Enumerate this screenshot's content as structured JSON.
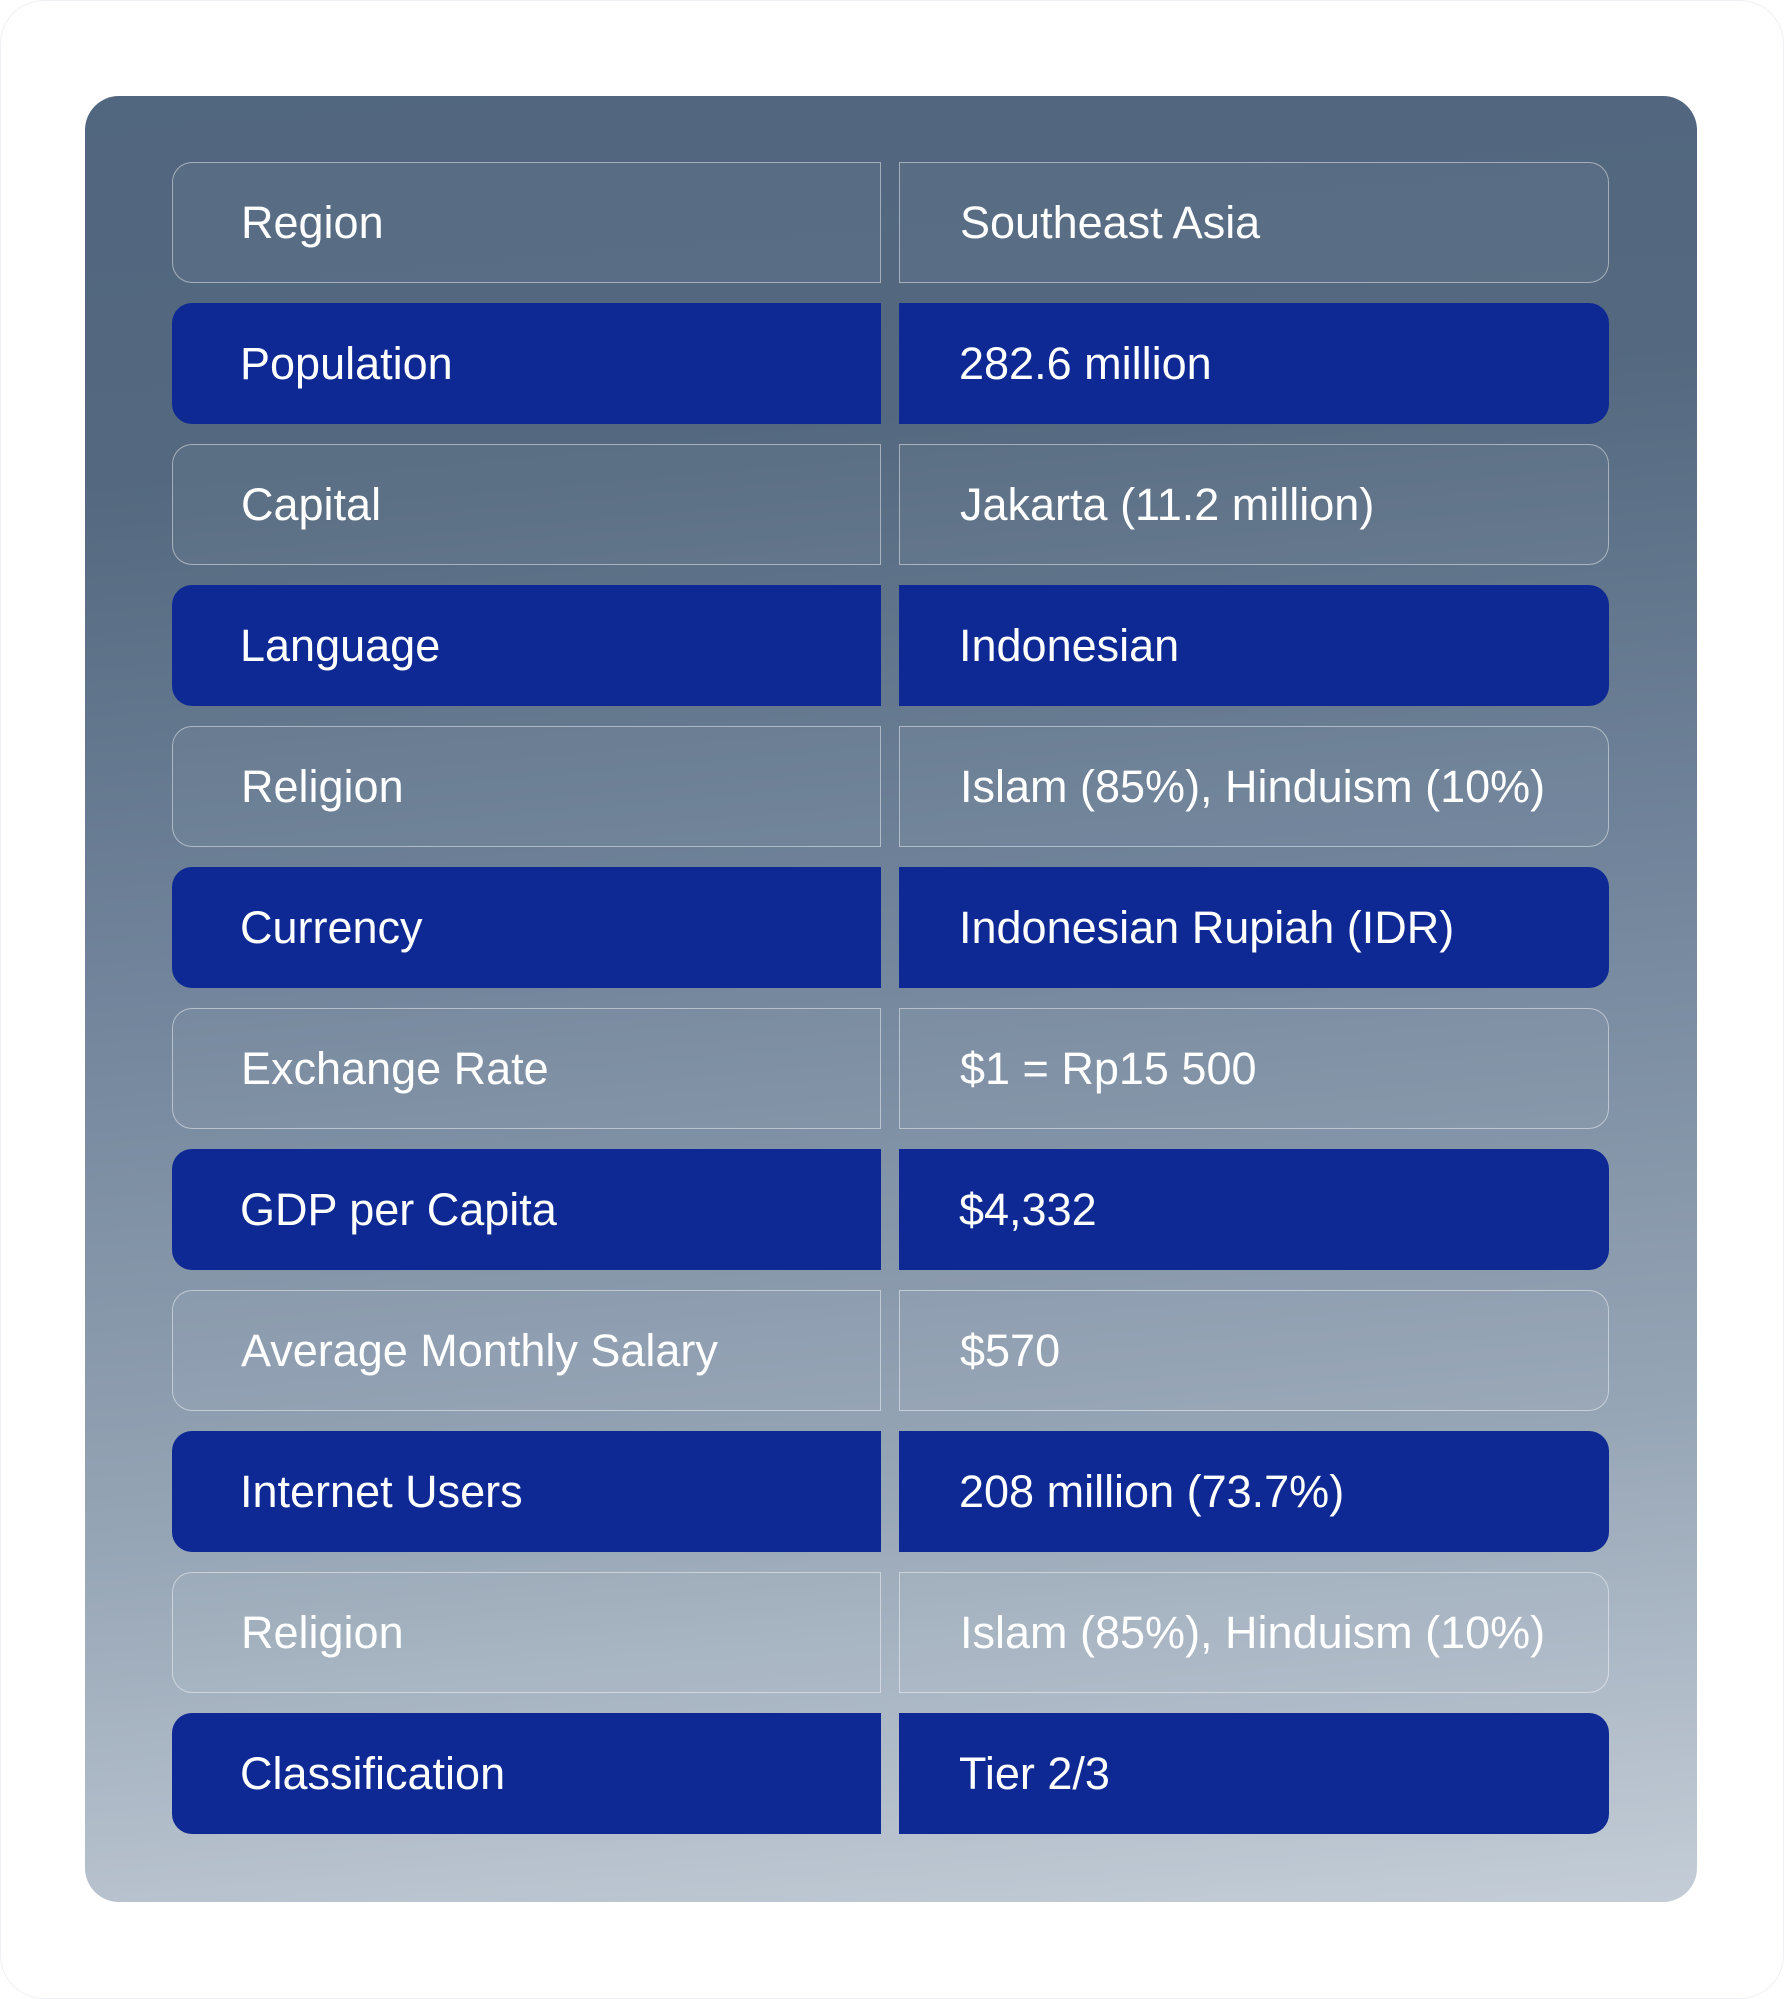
{
  "colors": {
    "highlight_row": "#0e2994",
    "card_top": "#51667f",
    "card_bottom": "#c4cdd7"
  },
  "rows": [
    {
      "label": "Region",
      "value": "Southeast Asia",
      "style": "gray"
    },
    {
      "label": "Population",
      "value": "282.6 million",
      "style": "blue"
    },
    {
      "label": "Capital",
      "value": "Jakarta (11.2 million)",
      "style": "gray"
    },
    {
      "label": "Language",
      "value": "Indonesian",
      "style": "blue"
    },
    {
      "label": "Religion",
      "value": "Islam (85%), Hinduism (10%)",
      "style": "gray"
    },
    {
      "label": "Currency",
      "value": "Indonesian Rupiah (IDR)",
      "style": "blue"
    },
    {
      "label": "Exchange Rate",
      "value": "$1 = Rp15 500",
      "style": "gray"
    },
    {
      "label": "GDP per Capita",
      "value": "$4,332",
      "style": "blue"
    },
    {
      "label": "Average Monthly Salary",
      "value": "$570",
      "style": "gray"
    },
    {
      "label": "Internet Users",
      "value": "208 million (73.7%)",
      "style": "blue"
    },
    {
      "label": "Religion",
      "value": "Islam (85%), Hinduism (10%)",
      "style": "gray"
    },
    {
      "label": "Classification",
      "value": "Tier 2/3",
      "style": "blue"
    }
  ]
}
